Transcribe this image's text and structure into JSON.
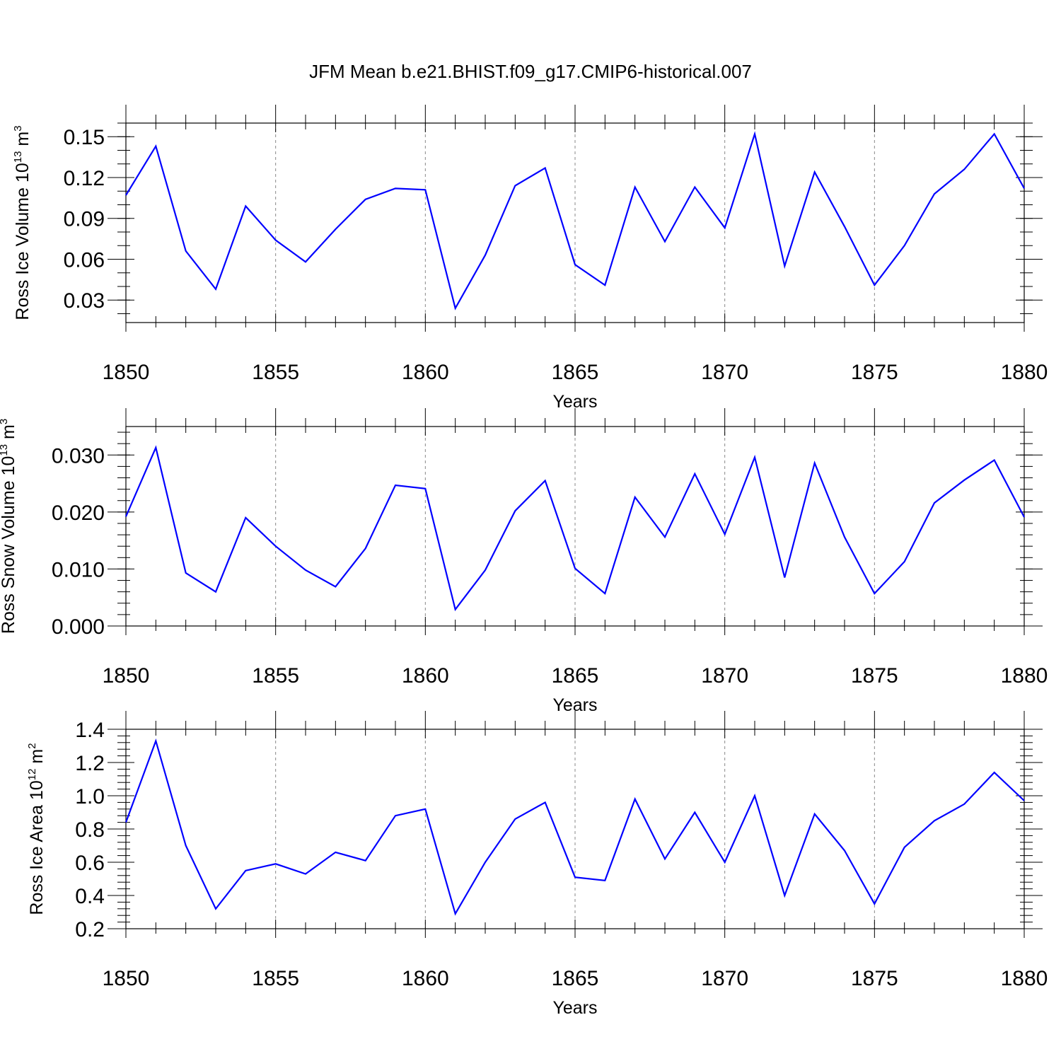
{
  "figure": {
    "title": "JFM Mean b.e21.BHIST.f09_g17.CMIP6-historical.007",
    "line_color": "#0000ff"
  },
  "chart_data": [
    {
      "type": "line",
      "name": "ross-ice-volume",
      "ylabel": "Ross Ice Volume 10",
      "ylabel_exp": "13",
      "ylabel_unit": "m",
      "ylabel_unit_exp": "3",
      "xlabel": "Years",
      "xlim": [
        1850,
        1880
      ],
      "ylim": [
        0.0135,
        0.16
      ],
      "yticks": [
        0.03,
        0.06,
        0.09,
        0.12,
        0.15
      ],
      "ytick_labels": [
        "0.03",
        "0.06",
        "0.09",
        "0.12",
        "0.15"
      ],
      "yminor_step": 0.01,
      "xticks": [
        1850,
        1855,
        1860,
        1865,
        1870,
        1875,
        1880
      ],
      "xtick_labels": [
        "1850",
        "1855",
        "1860",
        "1865",
        "1870",
        "1875",
        "1880"
      ],
      "x": [
        1850,
        1851,
        1852,
        1853,
        1854,
        1855,
        1856,
        1857,
        1858,
        1859,
        1860,
        1861,
        1862,
        1863,
        1864,
        1865,
        1866,
        1867,
        1868,
        1869,
        1870,
        1871,
        1872,
        1873,
        1874,
        1875,
        1876,
        1877,
        1878,
        1879,
        1880
      ],
      "values": [
        0.107,
        0.143,
        0.066,
        0.038,
        0.099,
        0.074,
        0.058,
        0.082,
        0.104,
        0.112,
        0.111,
        0.024,
        0.063,
        0.114,
        0.127,
        0.056,
        0.041,
        0.113,
        0.073,
        0.113,
        0.083,
        0.152,
        0.055,
        0.124,
        0.084,
        0.041,
        0.07,
        0.108,
        0.126,
        0.152,
        0.112
      ]
    },
    {
      "type": "line",
      "name": "ross-snow-volume",
      "ylabel": "Ross Snow Volume 10",
      "ylabel_exp": "13",
      "ylabel_unit": "m",
      "ylabel_unit_exp": "3",
      "xlabel": "Years",
      "xlim": [
        1850,
        1880
      ],
      "ylim": [
        0.0,
        0.035
      ],
      "yticks": [
        0.0,
        0.01,
        0.02,
        0.03
      ],
      "ytick_labels": [
        "0.000",
        "0.010",
        "0.020",
        "0.030"
      ],
      "yminor_step": 0.002,
      "xticks": [
        1850,
        1855,
        1860,
        1865,
        1870,
        1875,
        1880
      ],
      "xtick_labels": [
        "1850",
        "1855",
        "1860",
        "1865",
        "1870",
        "1875",
        "1880"
      ],
      "x": [
        1850,
        1851,
        1852,
        1853,
        1854,
        1855,
        1856,
        1857,
        1858,
        1859,
        1860,
        1861,
        1862,
        1863,
        1864,
        1865,
        1866,
        1867,
        1868,
        1869,
        1870,
        1871,
        1872,
        1873,
        1874,
        1875,
        1876,
        1877,
        1878,
        1879,
        1880
      ],
      "values": [
        0.0192,
        0.0313,
        0.0093,
        0.006,
        0.019,
        0.014,
        0.0098,
        0.0069,
        0.0136,
        0.0247,
        0.0241,
        0.0029,
        0.0098,
        0.0202,
        0.0255,
        0.0101,
        0.0057,
        0.0226,
        0.0156,
        0.0267,
        0.0161,
        0.0296,
        0.0085,
        0.0286,
        0.0156,
        0.0057,
        0.0113,
        0.0216,
        0.0256,
        0.0291,
        0.0191
      ]
    },
    {
      "type": "line",
      "name": "ross-ice-area",
      "ylabel": "Ross Ice Area 10",
      "ylabel_exp": "12",
      "ylabel_unit": "m",
      "ylabel_unit_exp": "2",
      "xlabel": "Years",
      "xlim": [
        1850,
        1880
      ],
      "ylim": [
        0.2,
        1.4
      ],
      "yticks": [
        0.2,
        0.4,
        0.6,
        0.8,
        1.0,
        1.2,
        1.4
      ],
      "ytick_labels": [
        "0.2",
        "0.4",
        "0.6",
        "0.8",
        "1.0",
        "1.2",
        "1.4"
      ],
      "yminor_step": 0.04,
      "xticks": [
        1850,
        1855,
        1860,
        1865,
        1870,
        1875,
        1880
      ],
      "xtick_labels": [
        "1850",
        "1855",
        "1860",
        "1865",
        "1870",
        "1875",
        "1880"
      ],
      "x": [
        1850,
        1851,
        1852,
        1853,
        1854,
        1855,
        1856,
        1857,
        1858,
        1859,
        1860,
        1861,
        1862,
        1863,
        1864,
        1865,
        1866,
        1867,
        1868,
        1869,
        1870,
        1871,
        1872,
        1873,
        1874,
        1875,
        1876,
        1877,
        1878,
        1879,
        1880
      ],
      "values": [
        0.84,
        1.33,
        0.7,
        0.32,
        0.55,
        0.59,
        0.53,
        0.66,
        0.61,
        0.88,
        0.92,
        0.29,
        0.6,
        0.86,
        0.96,
        0.51,
        0.49,
        0.98,
        0.62,
        0.9,
        0.6,
        1.0,
        0.4,
        0.89,
        0.67,
        0.35,
        0.69,
        0.85,
        0.95,
        1.14,
        0.97
      ]
    }
  ]
}
